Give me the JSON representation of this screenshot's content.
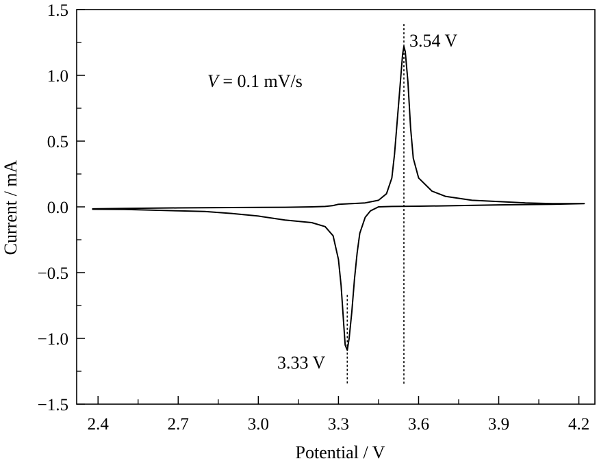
{
  "chart_data": {
    "type": "line",
    "title": "",
    "xlabel": "Potential / V",
    "ylabel": "Current / mA",
    "xlim": [
      2.32,
      4.26
    ],
    "ylim": [
      -1.5,
      1.5
    ],
    "x_ticks": [
      2.4,
      2.7,
      3.0,
      3.3,
      3.6,
      3.9,
      4.2
    ],
    "x_tick_labels": [
      "2.4",
      "2.7",
      "3.0",
      "3.3",
      "3.6",
      "3.9",
      "4.2"
    ],
    "y_ticks": [
      -1.5,
      -1.0,
      -0.5,
      0.0,
      0.5,
      1.0,
      1.5
    ],
    "y_tick_labels": [
      "−1.5",
      "−1.0",
      "−0.5",
      "0.0",
      "0.5",
      "1.0",
      "1.5"
    ],
    "grid": false,
    "legend": "none",
    "line_color": "#000000",
    "annotations": {
      "scan_rate_var": "V",
      "scan_rate_value": " = 0.1 mV/s",
      "anodic_peak_label": "3.54 V",
      "cathodic_peak_label": "3.33 V"
    },
    "peak_markers": [
      {
        "x": 3.545,
        "y_from": -1.35,
        "y_to": 1.39
      },
      {
        "x": 3.333,
        "y_from": -1.35,
        "y_to": -0.67
      }
    ],
    "series": [
      {
        "values": [
          [
            2.38,
            -0.015
          ],
          [
            2.5,
            -0.012
          ],
          [
            2.7,
            -0.008
          ],
          [
            2.9,
            -0.005
          ],
          [
            3.1,
            -0.003
          ],
          [
            3.2,
            0.0
          ],
          [
            3.25,
            0.003
          ],
          [
            3.28,
            0.01
          ],
          [
            3.3,
            0.02
          ],
          [
            3.35,
            0.025
          ],
          [
            3.4,
            0.03
          ],
          [
            3.45,
            0.05
          ],
          [
            3.48,
            0.1
          ],
          [
            3.5,
            0.22
          ],
          [
            3.51,
            0.4
          ],
          [
            3.52,
            0.65
          ],
          [
            3.53,
            0.9
          ],
          [
            3.54,
            1.16
          ],
          [
            3.545,
            1.22
          ],
          [
            3.55,
            1.18
          ],
          [
            3.56,
            0.95
          ],
          [
            3.57,
            0.6
          ],
          [
            3.58,
            0.37
          ],
          [
            3.6,
            0.22
          ],
          [
            3.65,
            0.12
          ],
          [
            3.7,
            0.08
          ],
          [
            3.8,
            0.05
          ],
          [
            3.9,
            0.04
          ],
          [
            4.0,
            0.03
          ],
          [
            4.1,
            0.025
          ],
          [
            4.22,
            0.025
          ],
          [
            4.1,
            0.02
          ],
          [
            3.9,
            0.015
          ],
          [
            3.7,
            0.008
          ],
          [
            3.6,
            0.005
          ],
          [
            3.5,
            0.003
          ],
          [
            3.45,
            0.0
          ],
          [
            3.42,
            -0.03
          ],
          [
            3.4,
            -0.08
          ],
          [
            3.38,
            -0.2
          ],
          [
            3.37,
            -0.35
          ],
          [
            3.36,
            -0.55
          ],
          [
            3.35,
            -0.8
          ],
          [
            3.34,
            -1.0
          ],
          [
            3.333,
            -1.09
          ],
          [
            3.325,
            -1.05
          ],
          [
            3.32,
            -0.9
          ],
          [
            3.31,
            -0.6
          ],
          [
            3.3,
            -0.4
          ],
          [
            3.28,
            -0.22
          ],
          [
            3.25,
            -0.15
          ],
          [
            3.2,
            -0.12
          ],
          [
            3.1,
            -0.1
          ],
          [
            3.0,
            -0.07
          ],
          [
            2.9,
            -0.05
          ],
          [
            2.8,
            -0.035
          ],
          [
            2.7,
            -0.03
          ],
          [
            2.6,
            -0.025
          ],
          [
            2.5,
            -0.02
          ],
          [
            2.38,
            -0.018
          ]
        ]
      }
    ]
  }
}
